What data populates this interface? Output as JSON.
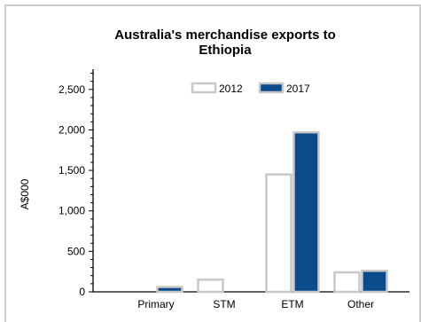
{
  "chart_data": {
    "type": "bar",
    "title_line1": "Australia's merchandise exports to",
    "title_line2": "Ethiopia",
    "ylabel": "A$000",
    "xlabel": "",
    "categories": [
      "Primary",
      "STM",
      "ETM",
      "Other"
    ],
    "series": [
      {
        "name": "2012",
        "values": [
          0,
          150,
          1450,
          240
        ],
        "fill": "#ffffff",
        "stroke": "#c8c8c8"
      },
      {
        "name": "2017",
        "values": [
          60,
          0,
          1970,
          260
        ],
        "fill": "#0b4a8b",
        "stroke": "#c8c8c8"
      }
    ],
    "ylim": [
      0,
      2750
    ],
    "yticks": [
      0,
      500,
      1000,
      1500,
      2000,
      2500
    ],
    "ytick_labels": [
      "0",
      "500",
      "1,000",
      "1,500",
      "2,000",
      "2,500"
    ],
    "legend_position": "top",
    "grid": false
  }
}
